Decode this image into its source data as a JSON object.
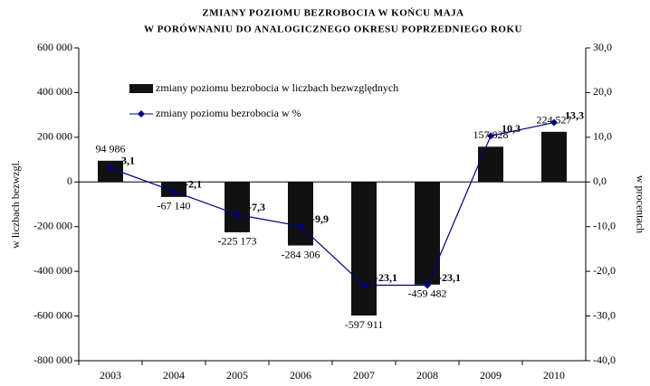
{
  "chart_data": {
    "type": "bar",
    "title": "ZMIANY POZIOMU BEZROBOCIA W KOŃCU MAJA",
    "subtitle": "W PORÓWNANIU DO ANALOGICZNEGO OKRESU POPRZEDNIEGO ROKU",
    "y_label": "w liczbach bezwzgl.",
    "y2_label": "w procentach",
    "categories": [
      "2003",
      "2004",
      "2005",
      "2006",
      "2007",
      "2008",
      "2009",
      "2010"
    ],
    "series": [
      {
        "name": "zmiany poziomu bezrobocia w liczbach bezwzględnych",
        "type": "bar",
        "color": "#111111",
        "values": [
          94986,
          -67140,
          -225173,
          -284306,
          -597911,
          -459482,
          157828,
          224527
        ],
        "value_labels": [
          "94 986",
          "-67 140",
          "-225 173",
          "-284 306",
          "-597 911",
          "-459 482",
          "157 828",
          "224 527"
        ]
      },
      {
        "name": "zmiany poziomu bezrobocia w %",
        "type": "line",
        "color": "#000080",
        "axis": "y2",
        "values": [
          3.1,
          -2.1,
          -7.3,
          -9.9,
          -23.1,
          -23.1,
          10.3,
          13.3
        ],
        "value_labels": [
          "3,1",
          "-2,1",
          "-7,3",
          "-9,9",
          "-23,1",
          "-23,1",
          "10,3",
          "13,3"
        ]
      }
    ],
    "ylim": [
      -800000,
      600000
    ],
    "yticks": [
      {
        "value": -800000,
        "label": "-800 000"
      },
      {
        "value": -600000,
        "label": "-600 000"
      },
      {
        "value": -400000,
        "label": "-400 000"
      },
      {
        "value": -200000,
        "label": "-200 000"
      },
      0,
      {
        "value": 200000,
        "label": "200 000"
      },
      {
        "value": 400000,
        "label": "400 000"
      },
      {
        "value": 600000,
        "label": "600 000"
      }
    ],
    "y2lim": [
      -40,
      30
    ],
    "y2ticks": [
      {
        "value": -40,
        "label": "-40,0"
      },
      {
        "value": -30,
        "label": "-30,0"
      },
      {
        "value": -20,
        "label": "-20,0"
      },
      {
        "value": -10,
        "label": "-10,0"
      },
      {
        "value": 0,
        "label": "0,0"
      },
      {
        "value": 10,
        "label": "10,0"
      },
      {
        "value": 20,
        "label": "20,0"
      },
      {
        "value": 30,
        "label": "30,0"
      }
    ]
  }
}
